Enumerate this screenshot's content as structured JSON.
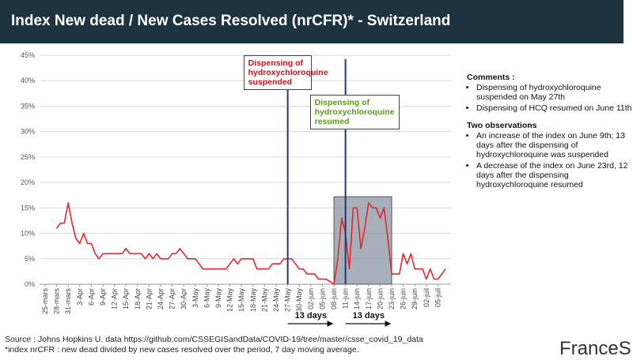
{
  "chart_data": {
    "type": "line",
    "title": "Index New dead / New Cases Resolved (nrCFR)* - Switzerland",
    "categories": [
      "25-mars",
      null,
      null,
      "28-mars",
      null,
      null,
      "31-mars",
      null,
      null,
      "3-Apr",
      null,
      null,
      "6-Apr",
      null,
      null,
      "9-Apr",
      null,
      null,
      "12-Apr",
      null,
      null,
      "15-Apr",
      null,
      null,
      "18-Apr",
      null,
      null,
      "21-Apr",
      null,
      null,
      "24-Apr",
      null,
      null,
      "27-Apr",
      null,
      null,
      "30-Apr",
      null,
      null,
      "3-May",
      null,
      null,
      "6-May",
      null,
      null,
      "9-May",
      null,
      null,
      "12-May",
      null,
      null,
      "15-May",
      null,
      null,
      "18-May",
      null,
      null,
      "21-May",
      null,
      null,
      "24-May",
      null,
      null,
      "27-May",
      null,
      null,
      "30-May",
      null,
      null,
      "02-juin",
      null,
      null,
      "05-juin",
      null,
      null,
      "08-juin",
      null,
      null,
      "11-juin",
      null,
      null,
      "14-juin",
      null,
      null,
      "17-juin",
      null,
      null,
      "20-juin",
      null,
      null,
      "23-juin",
      null,
      null,
      "26-juin",
      null,
      null,
      "29-juin",
      null,
      null,
      "02-juil",
      null,
      null,
      "05-juil",
      null,
      null
    ],
    "values": [
      null,
      null,
      null,
      11,
      12,
      12,
      16,
      12,
      9,
      8,
      10,
      8,
      8,
      6,
      5,
      6,
      6,
      6,
      6,
      6,
      6,
      7,
      6,
      6,
      6,
      6,
      5,
      6,
      5,
      6,
      5,
      5,
      5,
      6,
      6,
      7,
      6,
      5,
      5,
      5,
      4,
      3,
      3,
      3,
      3,
      3,
      3,
      3,
      4,
      5,
      4,
      5,
      5,
      5,
      5,
      3,
      3,
      3,
      3,
      4,
      4,
      4,
      5,
      5,
      5,
      4,
      3,
      3,
      2,
      2,
      2,
      1,
      1,
      1,
      0.5,
      0,
      5,
      13,
      10,
      3,
      15,
      15,
      7,
      11,
      16,
      15,
      15,
      13,
      15,
      9,
      2,
      2,
      2,
      6,
      4,
      6,
      3,
      3,
      3,
      1,
      3,
      1,
      1,
      2,
      3
    ],
    "color": "#e3262b",
    "ylim": [
      0,
      45
    ],
    "yticks": [
      {
        "value": 0,
        "label": "0%"
      },
      {
        "value": 5,
        "label": "5%"
      },
      {
        "value": 10,
        "label": "10%"
      },
      {
        "value": 15,
        "label": "15%"
      },
      {
        "value": 20,
        "label": "20%"
      },
      {
        "value": 25,
        "label": "25%"
      },
      {
        "value": 30,
        "label": "30%"
      },
      {
        "value": 35,
        "label": "35%"
      },
      {
        "value": 40,
        "label": "40%"
      },
      {
        "value": 45,
        "label": "45%"
      }
    ],
    "grid": true,
    "annotations": [
      {
        "text": "Dispensing of hydroxychloroquine suspended",
        "x": "27-May",
        "color": "#c0141b"
      },
      {
        "text": "Dispensing of hydroxychloroquine resumed",
        "x": "11-juin",
        "color": "#5a9a1e"
      }
    ],
    "highlight": {
      "x": [
        "08-juin",
        "23-juin"
      ],
      "y": [
        0,
        17.2
      ]
    },
    "periods": [
      {
        "label": "13 days",
        "x": [
          "27-May",
          "08-juin"
        ]
      },
      {
        "label": "13 days",
        "x": [
          "11-juin",
          "23-juin"
        ]
      }
    ]
  },
  "comments": {
    "heading": "Comments :",
    "items": [
      "Dispensing of hydroxychloroquine suspended on May 27th",
      "Dispensing of HCQ resumed on June 11th"
    ]
  },
  "observations": {
    "heading": "Two observations",
    "items": [
      "An increase of the index on June 9th; 13 days after the dispensing of hydroxychloroquine  was suspended",
      "A decrease of the index on June 23rd, 12 days after the dispensing hydroxychloroquine  resumed"
    ]
  },
  "source": "Source : Johns Hopkins U. data https://github.com/CSSEGISandData/COVID-19/tree/master/csse_covid_19_data",
  "note": "*index nrCFR : new dead divided by new cases resolved over the period, 7 day moving average.",
  "logo": "FranceS"
}
